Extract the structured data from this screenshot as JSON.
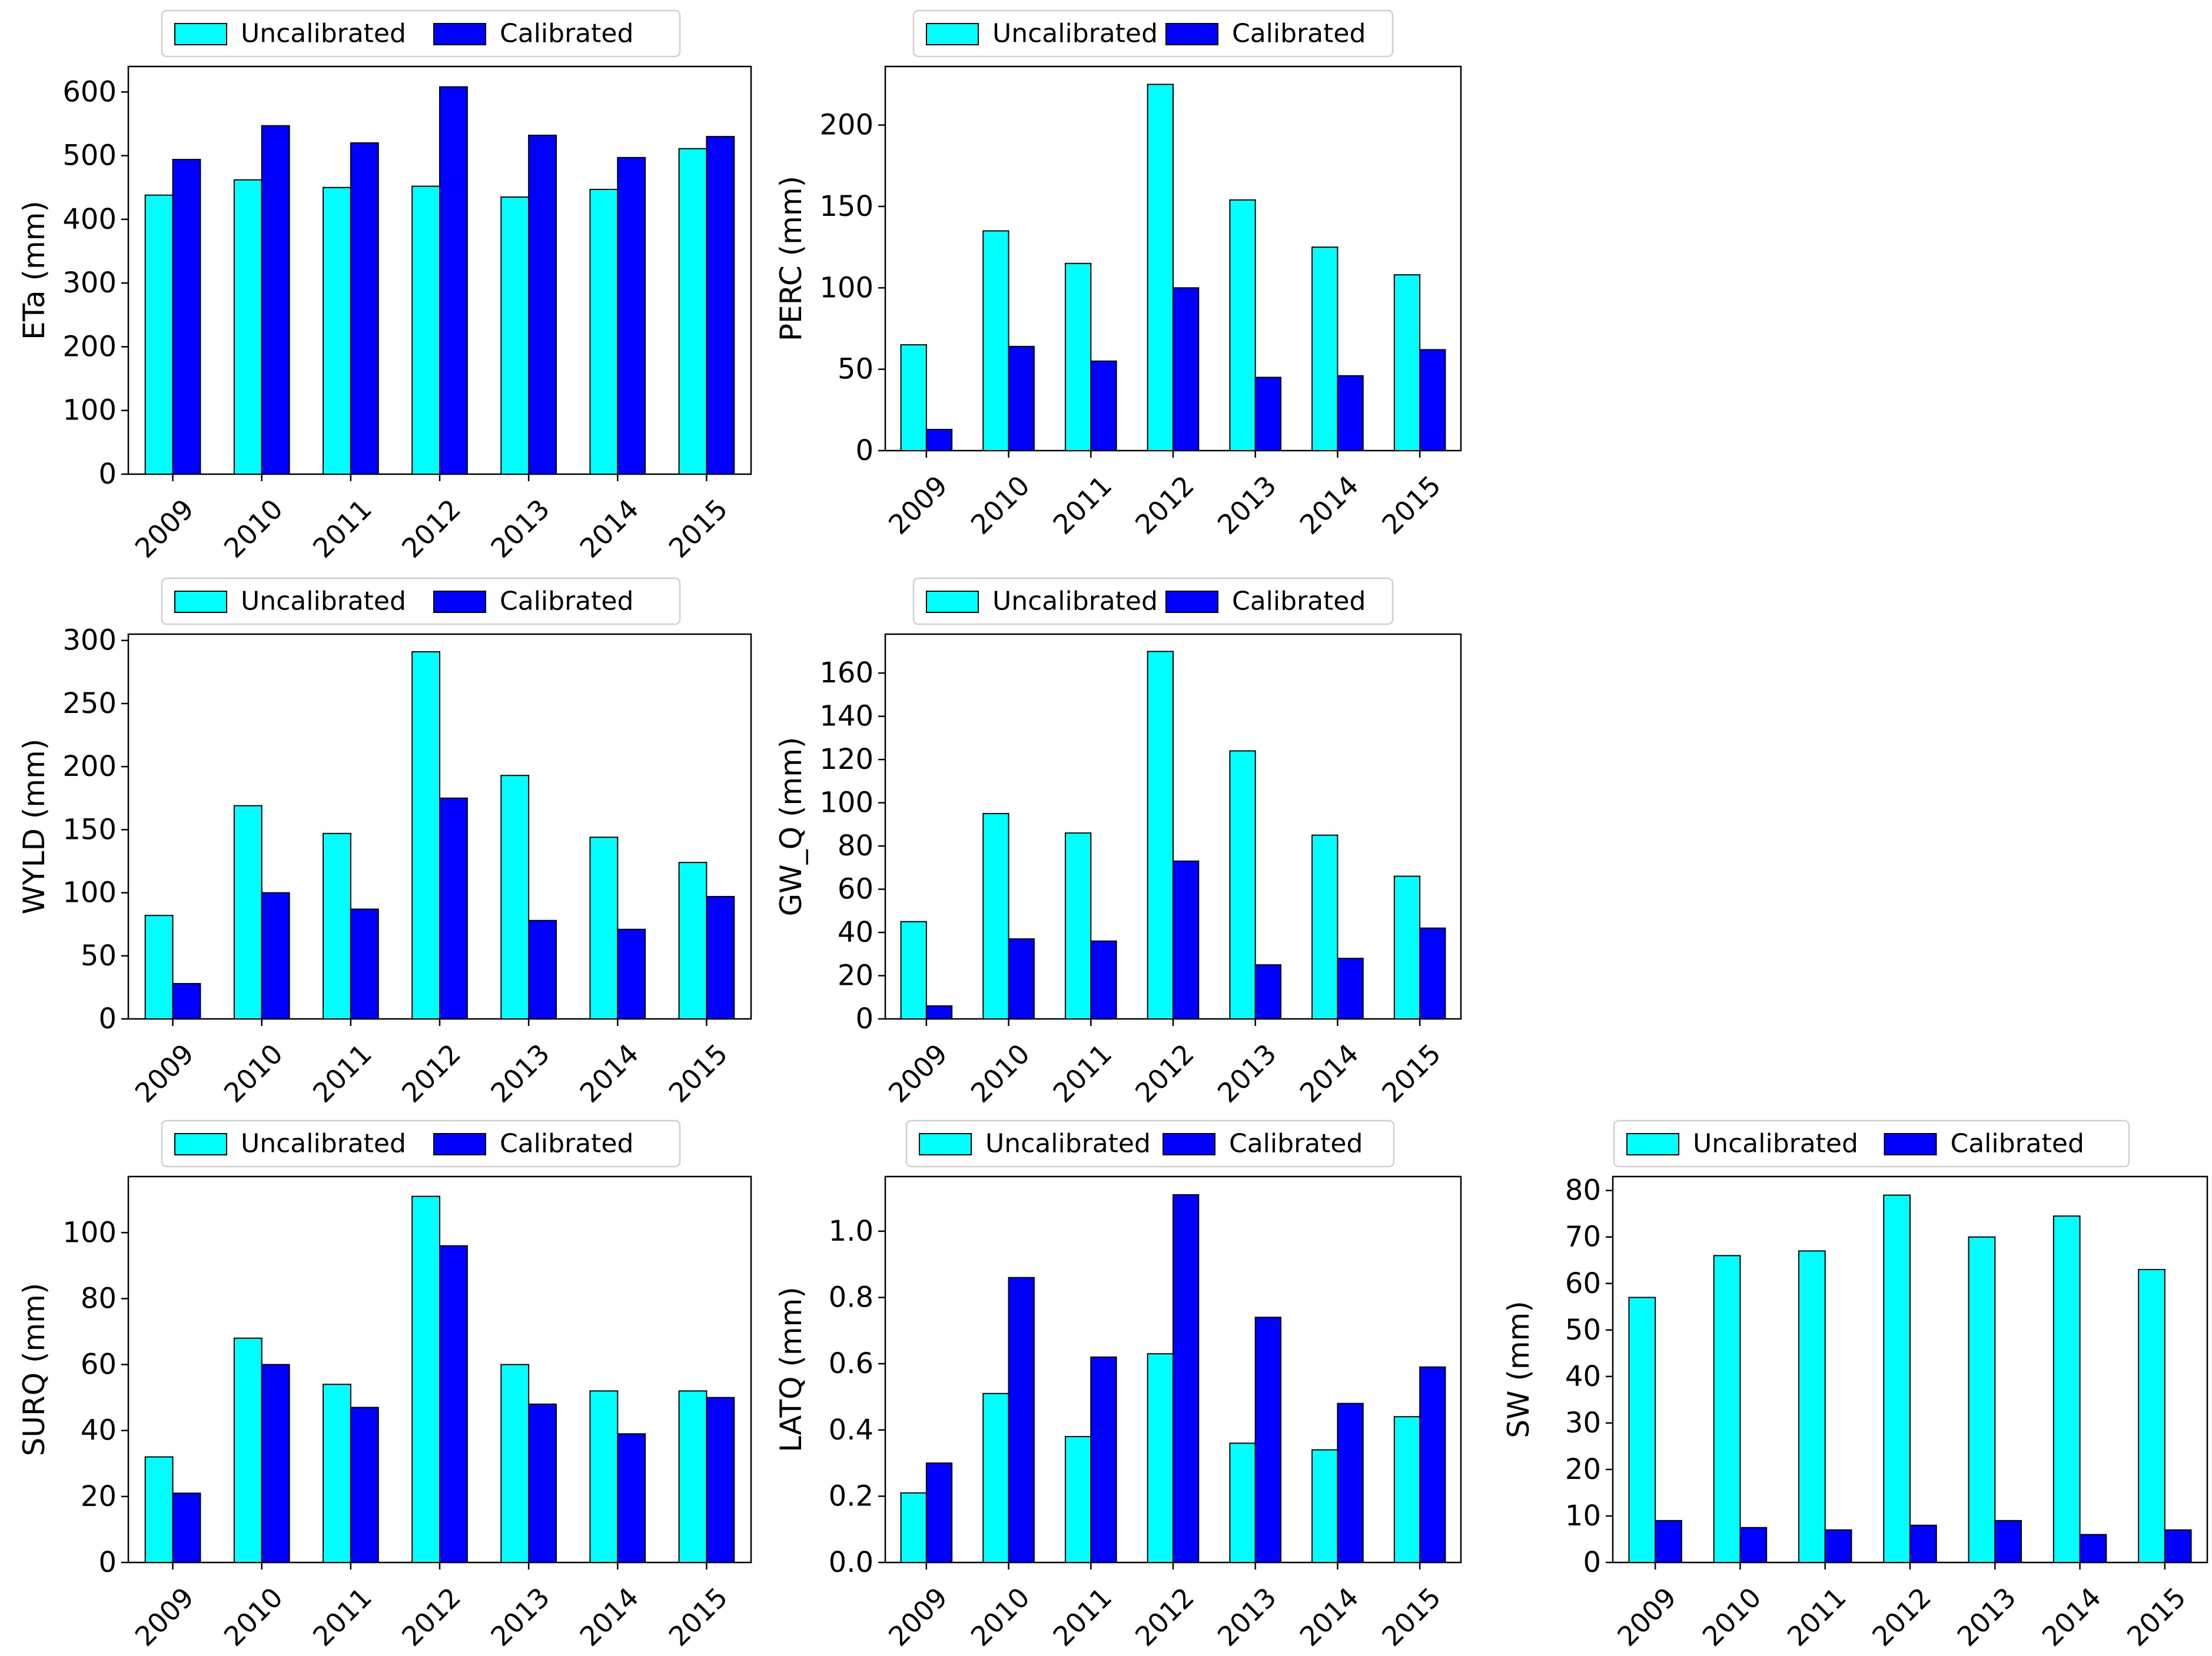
{
  "colors": {
    "uncalibrated": "#00FFFF",
    "calibrated": "#0000FF",
    "edge": "#000000"
  },
  "legend": {
    "uncalibrated_label": "Uncalibrated",
    "calibrated_label": "Calibrated"
  },
  "chart_data": [
    {
      "type": "bar",
      "id": "eta",
      "categories": [
        "2009",
        "2010",
        "2011",
        "2012",
        "2013",
        "2014",
        "2015"
      ],
      "series": [
        {
          "name": "Uncalibrated",
          "values": [
            438,
            462,
            450,
            452,
            435,
            447,
            511
          ]
        },
        {
          "name": "Calibrated",
          "values": [
            494,
            547,
            520,
            608,
            532,
            497,
            530
          ]
        }
      ],
      "ylabel": "ETa (mm)",
      "ylim": [
        0,
        640
      ],
      "yticks": [
        0,
        100,
        200,
        300,
        400,
        500,
        600
      ],
      "tick_decimals": 0,
      "legend_position": "top-center"
    },
    {
      "type": "bar",
      "id": "perc",
      "categories": [
        "2009",
        "2010",
        "2011",
        "2012",
        "2013",
        "2014",
        "2015"
      ],
      "series": [
        {
          "name": "Uncalibrated",
          "values": [
            65,
            135,
            115,
            225,
            154,
            125,
            108
          ]
        },
        {
          "name": "Calibrated",
          "values": [
            13,
            64,
            55,
            100,
            45,
            46,
            62
          ]
        }
      ],
      "ylabel": "PERC (mm)",
      "ylim": [
        0,
        236
      ],
      "yticks": [
        0,
        50,
        100,
        150,
        200
      ],
      "tick_decimals": 0,
      "legend_position": "top-center"
    },
    {
      "type": "bar",
      "id": "wyld",
      "categories": [
        "2009",
        "2010",
        "2011",
        "2012",
        "2013",
        "2014",
        "2015"
      ],
      "series": [
        {
          "name": "Uncalibrated",
          "values": [
            82,
            169,
            147,
            291,
            193,
            144,
            124
          ]
        },
        {
          "name": "Calibrated",
          "values": [
            28,
            100,
            87,
            175,
            78,
            71,
            97
          ]
        }
      ],
      "ylabel": "WYLD (mm)",
      "ylim": [
        0,
        305
      ],
      "yticks": [
        0,
        50,
        100,
        150,
        200,
        250,
        300
      ],
      "tick_decimals": 0,
      "legend_position": "top-center"
    },
    {
      "type": "bar",
      "id": "gw_q",
      "categories": [
        "2009",
        "2010",
        "2011",
        "2012",
        "2013",
        "2014",
        "2015"
      ],
      "series": [
        {
          "name": "Uncalibrated",
          "values": [
            45,
            95,
            86,
            170,
            124,
            85,
            66
          ]
        },
        {
          "name": "Calibrated",
          "values": [
            6,
            37,
            36,
            73,
            25,
            28,
            42
          ]
        }
      ],
      "ylabel": "GW_Q (mm)",
      "ylim": [
        0,
        178
      ],
      "yticks": [
        0,
        20,
        40,
        60,
        80,
        100,
        120,
        140,
        160
      ],
      "tick_decimals": 0,
      "legend_position": "top-center"
    },
    {
      "type": "bar",
      "id": "surq",
      "categories": [
        "2009",
        "2010",
        "2011",
        "2012",
        "2013",
        "2014",
        "2015"
      ],
      "series": [
        {
          "name": "Uncalibrated",
          "values": [
            32,
            68,
            54,
            111,
            60,
            52,
            52
          ]
        },
        {
          "name": "Calibrated",
          "values": [
            21,
            60,
            47,
            96,
            48,
            39,
            50
          ]
        }
      ],
      "ylabel": "SURQ (mm)",
      "ylim": [
        0,
        117
      ],
      "yticks": [
        0,
        20,
        40,
        60,
        80,
        100
      ],
      "tick_decimals": 0,
      "legend_position": "top-center"
    },
    {
      "type": "bar",
      "id": "latq",
      "categories": [
        "2009",
        "2010",
        "2011",
        "2012",
        "2013",
        "2014",
        "2015"
      ],
      "series": [
        {
          "name": "Uncalibrated",
          "values": [
            0.21,
            0.51,
            0.38,
            0.63,
            0.36,
            0.34,
            0.44
          ]
        },
        {
          "name": "Calibrated",
          "values": [
            0.3,
            0.86,
            0.62,
            1.11,
            0.74,
            0.48,
            0.59
          ]
        }
      ],
      "ylabel": "LATQ (mm)",
      "ylim": [
        0,
        1.165
      ],
      "yticks": [
        0,
        0.2,
        0.4,
        0.6,
        0.8,
        1.0
      ],
      "tick_decimals": 1,
      "legend_position": "top-center"
    },
    {
      "type": "bar",
      "id": "sw",
      "categories": [
        "2009",
        "2010",
        "2011",
        "2012",
        "2013",
        "2014",
        "2015"
      ],
      "series": [
        {
          "name": "Uncalibrated",
          "values": [
            57,
            66,
            67,
            79,
            70,
            74.5,
            63
          ]
        },
        {
          "name": "Calibrated",
          "values": [
            9,
            7.5,
            7,
            8,
            9,
            6,
            7
          ]
        }
      ],
      "ylabel": "SW (mm)",
      "ylim": [
        0,
        83
      ],
      "yticks": [
        0,
        10,
        20,
        30,
        40,
        50,
        60,
        70,
        80
      ],
      "tick_decimals": 0,
      "legend_position": "top-center"
    }
  ]
}
